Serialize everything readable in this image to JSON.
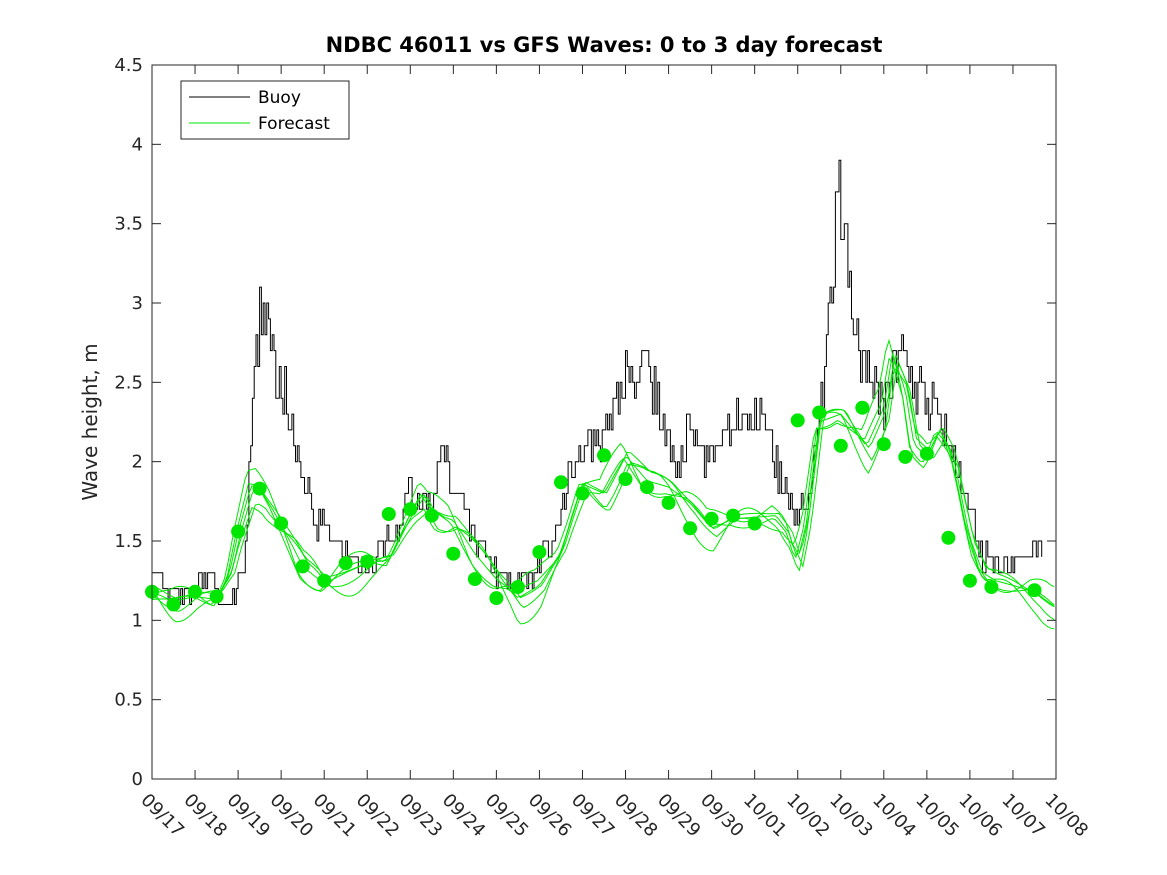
{
  "chart_data": {
    "type": "line",
    "title": "NDBC 46011 vs GFS Waves: 0 to 3 day forecast",
    "xlabel": "",
    "ylabel": "Wave height, m",
    "xlim": [
      0,
      21
    ],
    "ylim": [
      0,
      4.5
    ],
    "grid": false,
    "legend_location": "top-left",
    "y_ticks": [
      0,
      0.5,
      1,
      1.5,
      2,
      2.5,
      3,
      3.5,
      4,
      4.5
    ],
    "y_tick_labels": [
      "0",
      "0.5",
      "1",
      "1.5",
      "2",
      "2.5",
      "3",
      "3.5",
      "4",
      "4.5"
    ],
    "x_ticks": [
      0,
      1,
      2,
      3,
      4,
      5,
      6,
      7,
      8,
      9,
      10,
      11,
      12,
      13,
      14,
      15,
      16,
      17,
      18,
      19,
      20,
      21
    ],
    "x_tick_labels": [
      "09/17",
      "09/18",
      "09/19",
      "09/20",
      "09/21",
      "09/22",
      "09/23",
      "09/24",
      "09/25",
      "09/26",
      "09/27",
      "09/28",
      "09/29",
      "09/30",
      "10/01",
      "10/02",
      "10/03",
      "10/04",
      "10/05",
      "10/06",
      "10/07",
      "10/08"
    ],
    "colors": {
      "buoy": "#000000",
      "forecast": "#00e600",
      "marker": "#00e600",
      "axis": "#262626"
    },
    "series": [
      {
        "name": "Buoy",
        "x": [
          0,
          0.5,
          1,
          1.3,
          1.5,
          1.8,
          2.0,
          2.15,
          2.3,
          2.5,
          2.7,
          2.9,
          3.1,
          3.3,
          3.6,
          3.8,
          4.0,
          4.2,
          4.5,
          5.0,
          5.3,
          5.6,
          6.0,
          6.3,
          6.5,
          6.8,
          7.0,
          7.3,
          7.5,
          7.8,
          8.0,
          8.3,
          8.6,
          9.0,
          9.3,
          9.5,
          9.7,
          10.0,
          10.3,
          10.6,
          11.0,
          11.3,
          11.6,
          11.9,
          12.2,
          12.4,
          12.7,
          13.0,
          13.3,
          13.6,
          14.0,
          14.3,
          14.6,
          15.0,
          15.3,
          15.5,
          15.8,
          15.95,
          16.1,
          16.3,
          16.5,
          16.8,
          17.0,
          17.2,
          17.4,
          17.7,
          18.0,
          18.3,
          18.6,
          19.0,
          19.3,
          19.6,
          20.0,
          20.3,
          20.5,
          20.7
        ],
        "values": [
          1.3,
          1.15,
          1.2,
          1.3,
          1.2,
          1.05,
          1.25,
          1.4,
          2.2,
          2.9,
          2.8,
          2.5,
          2.4,
          2.1,
          1.8,
          1.6,
          1.6,
          1.5,
          1.4,
          1.35,
          1.45,
          1.5,
          1.8,
          1.7,
          1.75,
          2.1,
          1.8,
          1.7,
          1.5,
          1.4,
          1.3,
          1.25,
          1.2,
          1.35,
          1.5,
          1.7,
          1.9,
          2.1,
          2.1,
          2.3,
          2.5,
          2.6,
          2.5,
          2.2,
          2.0,
          2.2,
          2.1,
          2.0,
          2.15,
          2.3,
          2.3,
          2.15,
          1.9,
          1.65,
          1.8,
          2.2,
          3.2,
          3.7,
          3.5,
          2.8,
          2.6,
          2.5,
          2.3,
          2.55,
          2.7,
          2.5,
          2.4,
          2.3,
          2.1,
          1.7,
          1.4,
          1.35,
          1.35,
          1.4,
          1.45,
          1.4
        ]
      },
      {
        "name": "Forecast",
        "x": [
          0,
          0.5,
          1.0,
          1.5,
          1.8,
          2.0,
          2.3,
          2.5,
          2.8,
          3.0,
          3.3,
          3.5,
          4.0,
          4.5,
          5.0,
          5.5,
          6.0,
          6.3,
          6.5,
          6.8,
          7.0,
          7.5,
          8.0,
          8.3,
          8.5,
          9.0,
          9.5,
          10.0,
          10.5,
          11.0,
          11.5,
          12.0,
          12.5,
          13.0,
          13.5,
          14.0,
          14.5,
          14.8,
          15.0,
          15.2,
          15.5,
          16.0,
          16.3,
          16.6,
          17.0,
          17.2,
          17.5,
          17.7,
          18.0,
          18.3,
          18.6,
          19.0,
          19.3,
          19.6,
          20.0,
          20.5,
          21.0
        ],
        "values": [
          1.18,
          1.12,
          1.15,
          1.13,
          1.3,
          1.55,
          1.85,
          1.83,
          1.7,
          1.6,
          1.45,
          1.34,
          1.23,
          1.3,
          1.36,
          1.38,
          1.67,
          1.8,
          1.7,
          1.65,
          1.63,
          1.42,
          1.26,
          1.2,
          1.14,
          1.22,
          1.43,
          1.86,
          1.8,
          2.04,
          1.88,
          1.84,
          1.74,
          1.58,
          1.64,
          1.65,
          1.66,
          1.55,
          1.38,
          1.61,
          2.25,
          2.3,
          2.2,
          2.1,
          2.34,
          2.68,
          2.45,
          2.11,
          2.03,
          2.2,
          2.05,
          1.52,
          1.3,
          1.25,
          1.22,
          1.18,
          1.08
        ]
      }
    ],
    "markers": {
      "name": "Forecast markers",
      "x": [
        0,
        0.5,
        1.0,
        1.5,
        2.0,
        2.5,
        3.0,
        3.5,
        4.0,
        4.5,
        5.0,
        5.5,
        6.0,
        6.5,
        7.0,
        7.5,
        8.0,
        8.5,
        9.0,
        9.5,
        10.0,
        10.5,
        11.0,
        11.5,
        12.0,
        12.5,
        13.0,
        13.5,
        14.0,
        15.0,
        15.5,
        16.0,
        16.5,
        17.0,
        17.5,
        18.0,
        18.5,
        19.0,
        19.5,
        20.5
      ],
      "values": [
        1.18,
        1.1,
        1.18,
        1.15,
        1.56,
        1.83,
        1.61,
        1.34,
        1.25,
        1.36,
        1.37,
        1.67,
        1.7,
        1.66,
        1.42,
        1.26,
        1.14,
        1.21,
        1.43,
        1.87,
        1.8,
        2.04,
        1.89,
        1.84,
        1.74,
        1.58,
        1.64,
        1.66,
        1.61,
        2.26,
        2.31,
        2.1,
        2.34,
        2.11,
        2.03,
        2.05,
        1.52,
        1.25,
        1.21,
        1.19
      ]
    }
  }
}
